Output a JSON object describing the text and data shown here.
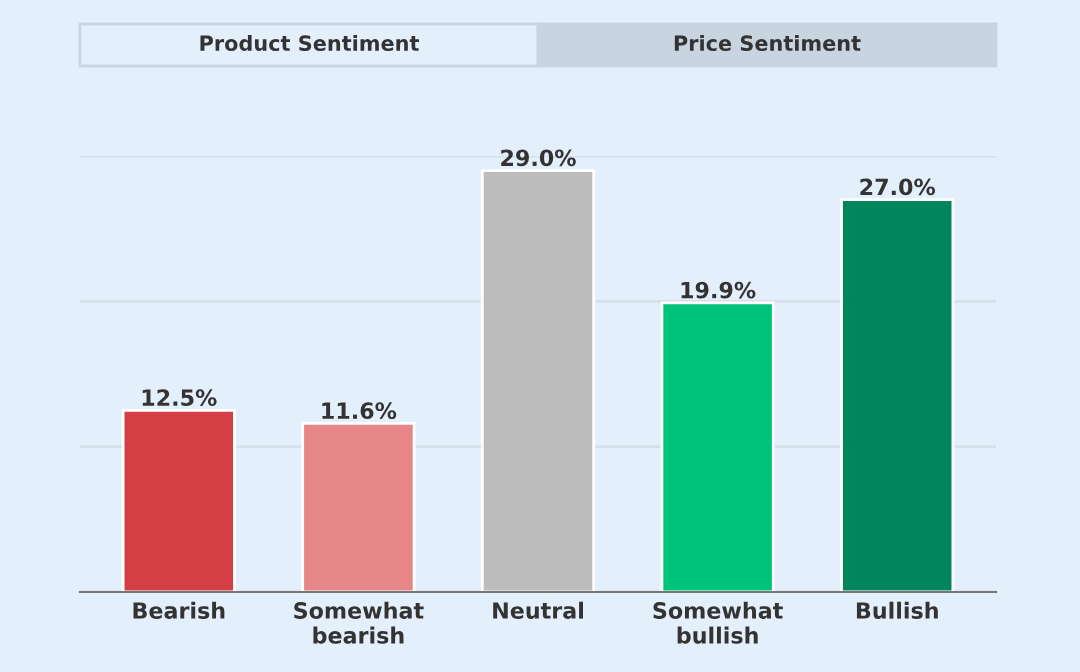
{
  "chart_data": {
    "type": "bar",
    "categories": [
      "Bearish",
      "Somewhat\nbearish",
      "Neutral",
      "Somewhat\nbullish",
      "Bullish"
    ],
    "values": [
      12.5,
      11.6,
      29.0,
      19.9,
      27.0
    ],
    "colors": [
      "#d33f44",
      "#e68686",
      "#bcbcbc",
      "#00c37b",
      "#00855c"
    ],
    "value_labels": [
      "12.5%",
      "11.6%",
      "29.0%",
      "19.9%",
      "27.0%"
    ],
    "ylim": [
      0,
      30
    ],
    "yticks": [
      {
        "value": 0,
        "label": null
      },
      {
        "value": 10,
        "label": null
      },
      {
        "value": 20,
        "label": null
      },
      {
        "value": 30,
        "label": null
      }
    ],
    "grid": "y",
    "tick_labels": "x",
    "annotations": [
      "Product Sentiment",
      "Price Sentiment"
    ]
  }
}
